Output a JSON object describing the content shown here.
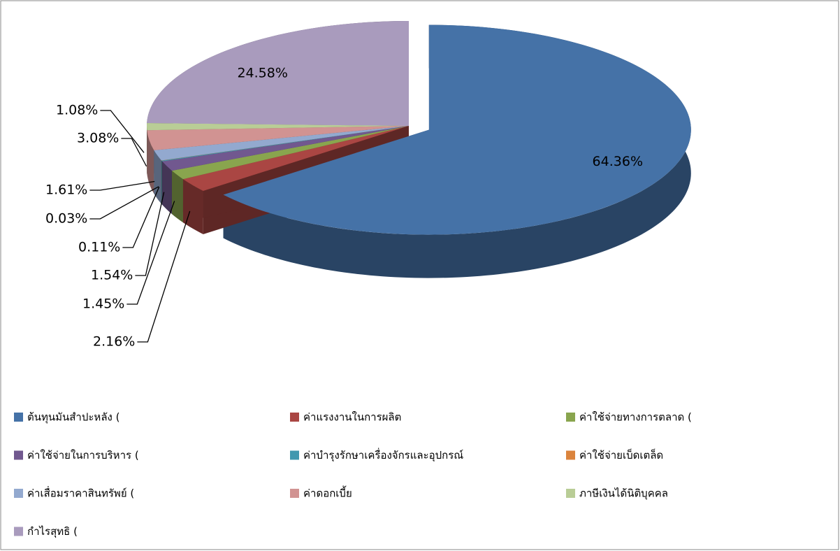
{
  "chart_data": {
    "type": "pie3d",
    "categories": [
      "ต้นทุนมันสำปะหลัง (",
      "ค่าแรงงานในการผลิต",
      "ค่าใช้จ่ายทางการตลาด (",
      "ค่าใช้จ่ายในการบริหาร (",
      "ค่าบำรุงรักษาเครื่องจักรและอุปกรณ์",
      "ค่าใช้จ่ายเบ็ดเตล็ด",
      "ค่าเสื่อมราคาสินทรัพย์ (",
      "ค่าดอกเบี้ย",
      "ภาษีเงินได้นิติบุคคล",
      "กำไรสุทธิ ("
    ],
    "values": [
      64.36,
      2.16,
      1.45,
      1.54,
      0.11,
      0.03,
      1.61,
      3.08,
      1.08,
      24.58
    ],
    "value_labels": [
      "64.36%",
      "2.16%",
      "1.45%",
      "1.54%",
      "0.11%",
      "0.03%",
      "1.61%",
      "3.08%",
      "1.08%",
      "24.58%"
    ],
    "colors": [
      "#4572a7",
      "#aa4643",
      "#89a54e",
      "#71588f",
      "#4198af",
      "#db843d",
      "#93a9cf",
      "#d19392",
      "#b9cd96",
      "#a99bbd"
    ],
    "legend": "bottom"
  }
}
